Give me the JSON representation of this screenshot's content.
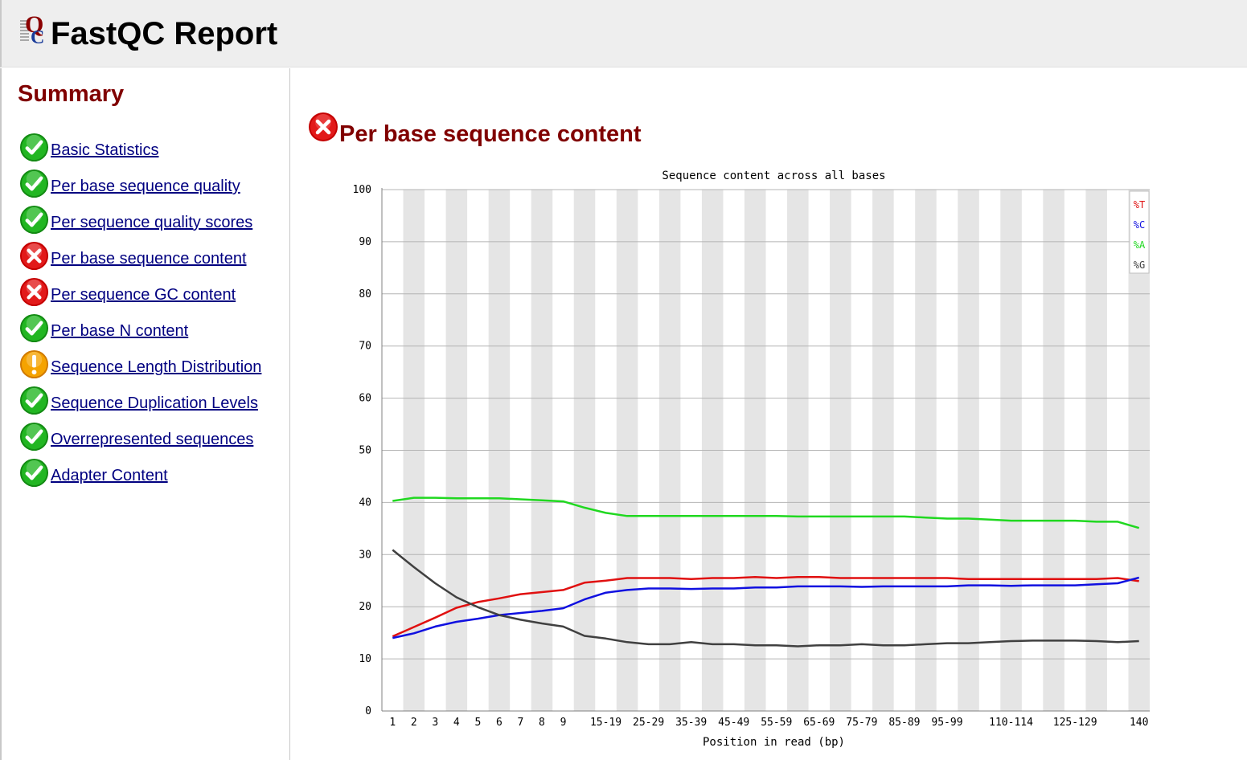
{
  "header": {
    "title": "FastQC Report",
    "logo_icon": "fastqc-logo-icon"
  },
  "sidebar": {
    "title": "Summary",
    "modules": [
      {
        "label": "Basic Statistics",
        "status": "pass"
      },
      {
        "label": "Per base sequence quality",
        "status": "pass"
      },
      {
        "label": "Per sequence quality scores",
        "status": "pass"
      },
      {
        "label": "Per base sequence content",
        "status": "fail"
      },
      {
        "label": "Per sequence GC content",
        "status": "fail"
      },
      {
        "label": "Per base N content",
        "status": "pass"
      },
      {
        "label": "Sequence Length Distribution",
        "status": "warn"
      },
      {
        "label": "Sequence Duplication Levels",
        "status": "pass"
      },
      {
        "label": "Overrepresented sequences",
        "status": "pass"
      },
      {
        "label": "Adapter Content",
        "status": "pass"
      }
    ]
  },
  "main": {
    "section_title": "Per base sequence content",
    "section_status": "fail"
  },
  "colors": {
    "pass": "#1db21d",
    "fail": "#e0101a",
    "warn": "#f2a000",
    "heading": "#800000",
    "link": "#000080"
  },
  "chart_data": {
    "type": "line",
    "title": "Sequence content across all bases",
    "xlabel": "Position in read (bp)",
    "ylabel": "",
    "ylim": [
      0,
      100
    ],
    "yticks": [
      0,
      10,
      20,
      30,
      40,
      50,
      60,
      70,
      80,
      90,
      100
    ],
    "categories": [
      "1",
      "2",
      "3",
      "4",
      "5",
      "6",
      "7",
      "8",
      "9",
      "10-14",
      "15-19",
      "20-24",
      "25-29",
      "30-34",
      "35-39",
      "40-44",
      "45-49",
      "50-54",
      "55-59",
      "60-64",
      "65-69",
      "70-74",
      "75-79",
      "80-84",
      "85-89",
      "90-94",
      "95-99",
      "100-104",
      "105-109",
      "110-114",
      "115-119",
      "120-124",
      "125-129",
      "130-134",
      "135-139",
      "140"
    ],
    "x_tick_labels": [
      "1",
      "2",
      "3",
      "4",
      "5",
      "6",
      "7",
      "8",
      "9",
      "",
      "15-19",
      "",
      "25-29",
      "",
      "35-39",
      "",
      "45-49",
      "",
      "55-59",
      "",
      "65-69",
      "",
      "75-79",
      "",
      "85-89",
      "",
      "95-99",
      "",
      "",
      "110-114",
      "",
      "",
      "125-129",
      "",
      "",
      "140"
    ],
    "grid": true,
    "legend_position": "top-right",
    "series": [
      {
        "name": "%T",
        "color": "#e01010",
        "values": [
          14.3,
          16.1,
          17.9,
          19.8,
          20.9,
          21.6,
          22.4,
          22.8,
          23.2,
          24.6,
          25.0,
          25.5,
          25.5,
          25.5,
          25.3,
          25.5,
          25.5,
          25.7,
          25.5,
          25.7,
          25.7,
          25.5,
          25.5,
          25.5,
          25.5,
          25.5,
          25.5,
          25.3,
          25.3,
          25.3,
          25.3,
          25.3,
          25.3,
          25.3,
          25.5,
          24.9
        ]
      },
      {
        "name": "%C",
        "color": "#1010e0",
        "values": [
          14.0,
          14.9,
          16.2,
          17.1,
          17.7,
          18.4,
          18.8,
          19.2,
          19.7,
          21.4,
          22.7,
          23.2,
          23.5,
          23.5,
          23.4,
          23.5,
          23.5,
          23.7,
          23.7,
          23.9,
          23.9,
          23.9,
          23.8,
          23.9,
          23.9,
          23.9,
          23.9,
          24.1,
          24.1,
          24.0,
          24.1,
          24.1,
          24.1,
          24.3,
          24.5,
          25.6
        ]
      },
      {
        "name": "%A",
        "color": "#20d820",
        "values": [
          40.3,
          40.9,
          40.9,
          40.8,
          40.8,
          40.8,
          40.6,
          40.4,
          40.2,
          39.0,
          38.0,
          37.4,
          37.4,
          37.4,
          37.4,
          37.4,
          37.4,
          37.4,
          37.4,
          37.3,
          37.3,
          37.3,
          37.3,
          37.3,
          37.3,
          37.1,
          36.9,
          36.9,
          36.7,
          36.5,
          36.5,
          36.5,
          36.5,
          36.3,
          36.3,
          35.1
        ]
      },
      {
        "name": "%G",
        "color": "#404040",
        "values": [
          30.9,
          27.6,
          24.5,
          21.8,
          19.9,
          18.4,
          17.5,
          16.8,
          16.2,
          14.4,
          13.9,
          13.2,
          12.8,
          12.8,
          13.2,
          12.8,
          12.8,
          12.6,
          12.6,
          12.4,
          12.6,
          12.6,
          12.8,
          12.6,
          12.6,
          12.8,
          13.0,
          13.0,
          13.2,
          13.4,
          13.5,
          13.5,
          13.5,
          13.4,
          13.2,
          13.4
        ]
      }
    ]
  }
}
